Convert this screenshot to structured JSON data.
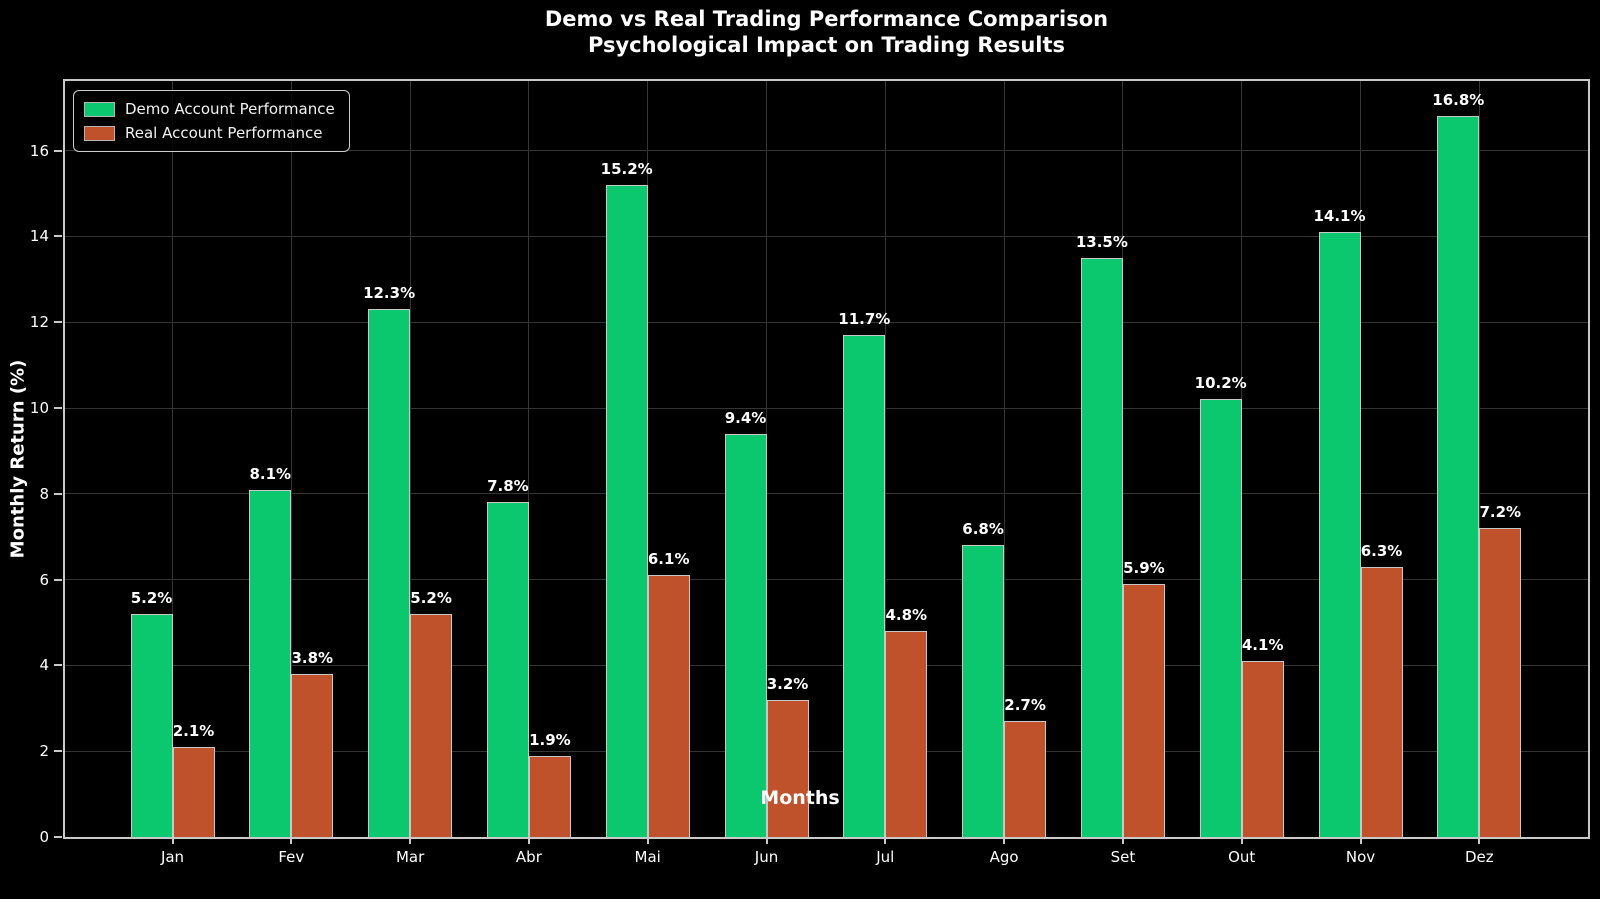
{
  "title": {
    "line1": "Demo vs Real Trading Performance Comparison",
    "line2": "Psychological Impact on Trading Results"
  },
  "chart_data": {
    "type": "bar",
    "title": "Demo vs Real Trading Performance Comparison — Psychological Impact on Trading Results",
    "xlabel": "Months",
    "ylabel": "Monthly Return (%)",
    "categories": [
      "Jan",
      "Fev",
      "Mar",
      "Abr",
      "Mai",
      "Jun",
      "Jul",
      "Ago",
      "Set",
      "Out",
      "Nov",
      "Dez"
    ],
    "series": [
      {
        "name": "Demo Account Performance",
        "color": "#0bc86e",
        "values": [
          5.2,
          8.1,
          12.3,
          7.8,
          15.2,
          9.4,
          11.7,
          6.8,
          13.5,
          10.2,
          14.1,
          16.8
        ],
        "labels": [
          "5.2%",
          "8.1%",
          "12.3%",
          "7.8%",
          "15.2%",
          "9.4%",
          "11.7%",
          "6.8%",
          "13.5%",
          "10.2%",
          "14.1%",
          "16.8%"
        ]
      },
      {
        "name": "Real Account Performance",
        "color": "#c0522b",
        "values": [
          2.1,
          3.8,
          5.2,
          1.9,
          6.1,
          3.2,
          4.8,
          2.7,
          5.9,
          4.1,
          6.3,
          7.2
        ],
        "labels": [
          "2.1%",
          "3.8%",
          "5.2%",
          "1.9%",
          "6.1%",
          "3.2%",
          "4.8%",
          "2.7%",
          "5.9%",
          "4.1%",
          "6.3%",
          "7.2%"
        ]
      }
    ],
    "y_ticks": [
      0,
      2,
      4,
      6,
      8,
      10,
      12,
      14,
      16
    ],
    "ylim": [
      0,
      17.6
    ],
    "grid": true,
    "legend_position": "upper left",
    "background_color": "#000000",
    "text_color": "#ffffff",
    "grid_color": "#343434",
    "spine_color": "#c9c9c9",
    "bar_edge_color": "#c8c8c8"
  }
}
